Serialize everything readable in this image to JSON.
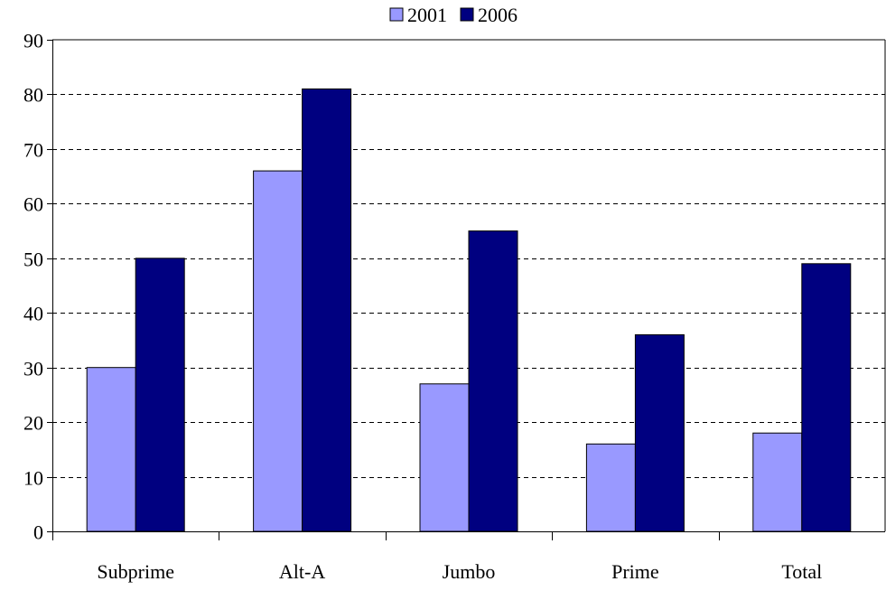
{
  "chart_data": {
    "type": "bar",
    "title": "",
    "xlabel": "",
    "ylabel": "",
    "categories": [
      "Subprime",
      "Alt-A",
      "Jumbo",
      "Prime",
      "Total"
    ],
    "series": [
      {
        "name": "2001",
        "values": [
          30,
          66,
          27,
          16,
          18
        ],
        "color": "#9999ff"
      },
      {
        "name": "2006",
        "values": [
          50,
          81,
          55,
          36,
          49
        ],
        "color": "#000080"
      }
    ],
    "ylim": [
      0,
      90
    ],
    "yticks": [
      "0",
      "10",
      "20",
      "30",
      "40",
      "50",
      "60",
      "70",
      "80",
      "90"
    ],
    "grid": "dashed horizontal",
    "legend_position": "top-center"
  }
}
